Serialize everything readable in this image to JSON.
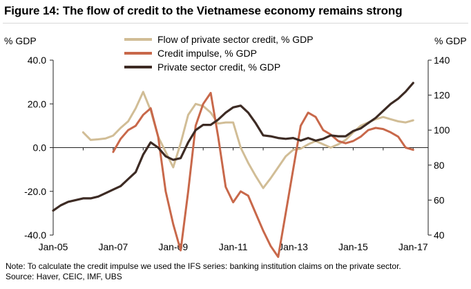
{
  "title": "Figure 14: The flow of credit to the Vietnamese economy remains strong",
  "note": "Note: To calculate the credit impulse we used the IFS series: banking institution claims on the private sector.",
  "source": "Source:  Haver, CEIC, IMF, UBS",
  "chart_data": {
    "type": "line",
    "ylabel_left": "% GDP",
    "ylabel_right": "% GDP",
    "ylim_left": [
      -40,
      40
    ],
    "ylim_right": [
      40,
      140
    ],
    "yticks_left": [
      -40,
      -20,
      0,
      20,
      40
    ],
    "yticks_left_labels": [
      "-40.0",
      "-20.0",
      "0.0",
      "20.0",
      "40.0"
    ],
    "yticks_right": [
      40,
      60,
      80,
      100,
      120,
      140
    ],
    "yticks_right_labels": [
      "40",
      "60",
      "80",
      "100",
      "120",
      "140"
    ],
    "xlim": [
      2005.0,
      2017.5
    ],
    "xticks": [
      2005,
      2007,
      2009,
      2011,
      2013,
      2015,
      2017
    ],
    "xtick_labels": [
      "Jan-05",
      "Jan-07",
      "Jan-09",
      "Jan-11",
      "Jan-13",
      "Jan-15",
      "Jan-17"
    ],
    "grid": false,
    "legend_position": "top-center",
    "series": [
      {
        "name": "Flow of private sector credit, % GDP",
        "axis": "left",
        "color": "#d1bd96",
        "x": [
          2006.0,
          2006.25,
          2006.5,
          2006.75,
          2007.0,
          2007.25,
          2007.5,
          2007.75,
          2008.0,
          2008.25,
          2008.5,
          2008.75,
          2009.0,
          2009.25,
          2009.5,
          2009.75,
          2010.0,
          2010.25,
          2010.5,
          2010.75,
          2011.0,
          2011.25,
          2011.5,
          2011.75,
          2012.0,
          2012.25,
          2012.5,
          2012.75,
          2013.0,
          2013.25,
          2013.5,
          2013.75,
          2014.0,
          2014.25,
          2014.5,
          2014.75,
          2015.0,
          2015.25,
          2015.5,
          2015.75,
          2016.0,
          2016.25,
          2016.5,
          2016.75,
          2017.0
        ],
        "values": [
          7,
          3.5,
          3.8,
          4.2,
          5.5,
          9,
          12,
          18,
          25.5,
          17,
          5,
          -2,
          -9,
          2,
          15,
          20,
          19,
          16,
          11,
          11.5,
          11.5,
          0,
          -7,
          -13,
          -18.5,
          -14,
          -9,
          -4,
          -1,
          -0.5,
          1.5,
          3,
          1.5,
          0,
          1.5,
          3.5,
          7,
          10,
          11.5,
          13,
          14,
          13,
          12,
          11.5,
          12.5
        ]
      },
      {
        "name": "Credit impulse, % GDP",
        "axis": "left",
        "color": "#c8684a",
        "x": [
          2007.0,
          2007.25,
          2007.5,
          2007.75,
          2008.0,
          2008.25,
          2008.5,
          2008.75,
          2009.0,
          2009.25,
          2009.5,
          2009.75,
          2010.0,
          2010.25,
          2010.5,
          2010.75,
          2011.0,
          2011.25,
          2011.5,
          2011.75,
          2012.0,
          2012.25,
          2012.5,
          2012.75,
          2013.0,
          2013.25,
          2013.5,
          2013.75,
          2014.0,
          2014.25,
          2014.5,
          2014.75,
          2015.0,
          2015.25,
          2015.5,
          2015.75,
          2016.0,
          2016.25,
          2016.5,
          2016.75,
          2017.0
        ],
        "values": [
          -2,
          4,
          8,
          10,
          15,
          18,
          5,
          -20,
          -35,
          -47,
          -20,
          10,
          20,
          25,
          5,
          -18,
          -25,
          -20,
          -22,
          -30,
          -38,
          -45,
          -50,
          -30,
          -10,
          10,
          16,
          14,
          8,
          6,
          3,
          2,
          3,
          5,
          8,
          9,
          8.5,
          7,
          5,
          0,
          -1
        ]
      },
      {
        "name": "Private sector credit, % GDP",
        "axis": "right",
        "color": "#3d2b24",
        "x": [
          2005.0,
          2005.25,
          2005.5,
          2005.75,
          2006.0,
          2006.25,
          2006.5,
          2006.75,
          2007.0,
          2007.25,
          2007.5,
          2007.75,
          2008.0,
          2008.25,
          2008.5,
          2008.75,
          2009.0,
          2009.25,
          2009.5,
          2009.75,
          2010.0,
          2010.25,
          2010.5,
          2010.75,
          2011.0,
          2011.25,
          2011.5,
          2011.75,
          2012.0,
          2012.25,
          2012.5,
          2012.75,
          2013.0,
          2013.25,
          2013.5,
          2013.75,
          2014.0,
          2014.25,
          2014.5,
          2014.75,
          2015.0,
          2015.25,
          2015.5,
          2015.75,
          2016.0,
          2016.25,
          2016.5,
          2016.75,
          2017.0
        ],
        "values": [
          54,
          57,
          59,
          60,
          61,
          61,
          62,
          64,
          66,
          68,
          72,
          76,
          86,
          93,
          90,
          85,
          83,
          84,
          93,
          100,
          103,
          103,
          106,
          110,
          113,
          114,
          110,
          104,
          97,
          96.5,
          95.5,
          95,
          95.5,
          94,
          95.5,
          94,
          95,
          97,
          96.5,
          96.5,
          99.5,
          101,
          104,
          107,
          111,
          115,
          118,
          122,
          127
        ]
      }
    ]
  }
}
